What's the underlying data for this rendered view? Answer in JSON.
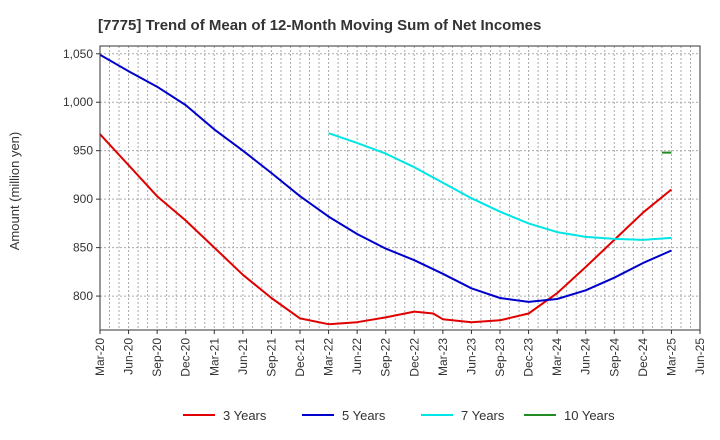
{
  "chart_data": {
    "type": "line",
    "title": "[7775]  Trend of Mean of 12-Month Moving Sum of Net Incomes",
    "xlabel": "",
    "ylabel": "Amount (million yen)",
    "x_ticks": [
      "Mar-20",
      "Jun-20",
      "Sep-20",
      "Dec-20",
      "Mar-21",
      "Jun-21",
      "Sep-21",
      "Dec-21",
      "Mar-22",
      "Jun-22",
      "Sep-22",
      "Dec-22",
      "Mar-23",
      "Jun-23",
      "Sep-23",
      "Dec-23",
      "Mar-24",
      "Jun-24",
      "Sep-24",
      "Dec-24",
      "Mar-25",
      "Jun-25"
    ],
    "y_ticks": [
      800,
      850,
      900,
      950,
      1000,
      1050
    ],
    "y_tick_labels": [
      "800",
      "850",
      "900",
      "950",
      "1,000",
      "1,050"
    ],
    "ylim": [
      765,
      1058
    ],
    "grid": true,
    "legend_position": "bottom",
    "series": [
      {
        "name": "3 Years",
        "color": "#e00000",
        "x": [
          "Mar-20",
          "Jun-20",
          "Sep-20",
          "Dec-20",
          "Mar-21",
          "Jun-21",
          "Sep-21",
          "Dec-21",
          "Mar-22",
          "Jun-22",
          "Sep-22",
          "Dec-22",
          "Feb-23",
          "Mar-23",
          "Jun-23",
          "Sep-23",
          "Dec-23",
          "Mar-24",
          "Jun-24",
          "Sep-24",
          "Dec-24",
          "Mar-25"
        ],
        "values": [
          967,
          935,
          903,
          878,
          850,
          822,
          798,
          777,
          771,
          773,
          778,
          784,
          782,
          776,
          773,
          775,
          782,
          803,
          830,
          858,
          886,
          910
        ]
      },
      {
        "name": "5 Years",
        "color": "#0000cc",
        "x": [
          "Mar-20",
          "Jun-20",
          "Sep-20",
          "Dec-20",
          "Mar-21",
          "Jun-21",
          "Sep-21",
          "Dec-21",
          "Mar-22",
          "Jun-22",
          "Sep-22",
          "Dec-22",
          "Mar-23",
          "Jun-23",
          "Sep-23",
          "Dec-23",
          "Mar-24",
          "Jun-24",
          "Sep-24",
          "Dec-24",
          "Mar-25"
        ],
        "values": [
          1049,
          1032,
          1016,
          997,
          972,
          950,
          927,
          903,
          882,
          864,
          849,
          837,
          823,
          808,
          798,
          794,
          797,
          806,
          819,
          834,
          847
        ]
      },
      {
        "name": "7 Years",
        "color": "#00e5e5",
        "x": [
          "Mar-22",
          "Jun-22",
          "Sep-22",
          "Dec-22",
          "Mar-23",
          "Jun-23",
          "Sep-23",
          "Dec-23",
          "Mar-24",
          "Jun-24",
          "Sep-24",
          "Dec-24",
          "Mar-25"
        ],
        "values": [
          968,
          958,
          947,
          933,
          917,
          901,
          887,
          875,
          866,
          861,
          859,
          858,
          860
        ]
      },
      {
        "name": "10 Years",
        "color": "#228b22",
        "x": [
          "Feb-25",
          "Mar-25"
        ],
        "values": [
          948,
          948
        ]
      }
    ]
  }
}
